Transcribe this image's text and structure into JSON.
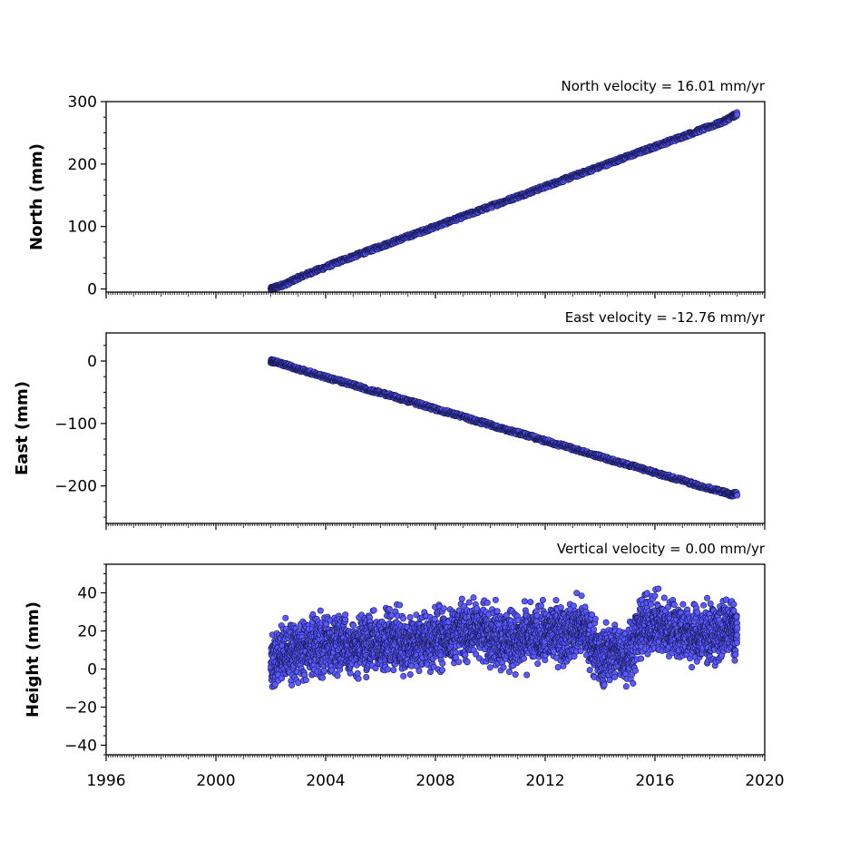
{
  "chart_data": [
    {
      "type": "scatter",
      "title": "North velocity = 16.01 mm/yr",
      "ylabel": "North (mm)",
      "xlim": [
        1996,
        2020
      ],
      "ylim": [
        -5,
        300
      ],
      "yticks": [
        0,
        100,
        200,
        300
      ],
      "ytick_labels": [
        "0",
        "100",
        "200",
        "300"
      ],
      "grid": false,
      "marker_color": "#5a5aff",
      "marker_edge": "#1a1a5a",
      "series": [
        {
          "x": [
            2002.0,
            2002.2,
            2002.6,
            2003.0,
            2003.5,
            2004.0,
            2004.5,
            2005.0,
            2005.5,
            2006.0,
            2006.5,
            2007.0,
            2007.5,
            2008.0,
            2008.5,
            2009.0,
            2009.5,
            2010.0,
            2010.5,
            2011.0,
            2011.5,
            2012.0,
            2012.5,
            2013.0,
            2013.5,
            2014.0,
            2014.5,
            2015.0,
            2015.5,
            2016.0,
            2016.5,
            2017.0,
            2017.5,
            2018.0,
            2018.5,
            2018.8,
            2019.0
          ],
          "y": [
            0,
            3,
            9,
            18,
            27,
            35,
            44,
            52,
            60,
            68,
            76,
            84,
            92,
            100,
            108,
            116,
            124,
            132,
            140,
            148,
            156,
            164,
            172,
            180,
            188,
            196,
            204,
            212,
            220,
            228,
            236,
            244,
            252,
            260,
            268,
            276,
            280
          ]
        }
      ]
    },
    {
      "type": "scatter",
      "title": "East velocity = -12.76 mm/yr",
      "ylabel": "East (mm)",
      "xlim": [
        1996,
        2020
      ],
      "ylim": [
        -260,
        45
      ],
      "yticks": [
        0,
        -100,
        -200
      ],
      "ytick_labels": [
        "0",
        "−100",
        "−200"
      ],
      "grid": false,
      "marker_color": "#5a5aff",
      "marker_edge": "#1a1a5a",
      "series": [
        {
          "x": [
            2002.0,
            2002.2,
            2002.6,
            2003.0,
            2003.5,
            2004.0,
            2004.5,
            2005.0,
            2005.5,
            2006.0,
            2006.5,
            2007.0,
            2007.5,
            2008.0,
            2008.5,
            2009.0,
            2009.5,
            2010.0,
            2010.5,
            2011.0,
            2011.5,
            2012.0,
            2012.5,
            2013.0,
            2013.5,
            2014.0,
            2014.5,
            2015.0,
            2015.5,
            2016.0,
            2016.5,
            2017.0,
            2017.5,
            2018.0,
            2018.5,
            2018.8,
            2019.0
          ],
          "y": [
            0,
            -2,
            -7,
            -13,
            -19,
            -26,
            -32,
            -38,
            -45,
            -51,
            -57,
            -64,
            -70,
            -77,
            -83,
            -89,
            -96,
            -102,
            -109,
            -115,
            -121,
            -128,
            -134,
            -140,
            -147,
            -153,
            -160,
            -166,
            -172,
            -179,
            -185,
            -191,
            -198,
            -204,
            -210,
            -214,
            -212
          ]
        }
      ]
    },
    {
      "type": "scatter",
      "title": "Vertical velocity = 0.00 mm/yr",
      "ylabel": "Height (mm)",
      "xlabel": "",
      "xlim": [
        1996,
        2020
      ],
      "ylim": [
        -45,
        55
      ],
      "yticks": [
        40,
        20,
        0,
        -20,
        -40
      ],
      "ytick_labels": [
        "40",
        "20",
        "0",
        "−20",
        "−40"
      ],
      "xticks": [
        1996,
        2000,
        2004,
        2008,
        2012,
        2016,
        2020
      ],
      "xtick_labels": [
        "1996",
        "2000",
        "2004",
        "2008",
        "2012",
        "2016",
        "2020"
      ],
      "grid": false,
      "marker_color": "#5a5aff",
      "marker_edge": "#1a1a5a",
      "series": [
        {
          "x": [
            2002.0,
            2002.3,
            2002.6,
            2002.9,
            2003.2,
            2003.5,
            2003.8,
            2004.1,
            2004.4,
            2004.7,
            2005.0,
            2005.3,
            2005.6,
            2005.9,
            2006.2,
            2006.5,
            2006.8,
            2007.1,
            2007.4,
            2007.7,
            2008.0,
            2008.3,
            2008.6,
            2008.9,
            2009.2,
            2009.5,
            2009.8,
            2010.1,
            2010.4,
            2010.7,
            2011.0,
            2011.3,
            2011.6,
            2011.9,
            2012.2,
            2012.5,
            2012.8,
            2013.1,
            2013.4,
            2013.7,
            2014.0,
            2014.3,
            2014.6,
            2014.9,
            2015.2,
            2015.5,
            2015.8,
            2016.1,
            2016.4,
            2016.7,
            2017.0,
            2017.3,
            2017.6,
            2017.9,
            2018.2,
            2018.5,
            2018.8,
            2019.0
          ],
          "y": [
            2,
            5,
            8,
            10,
            9,
            11,
            13,
            12,
            14,
            15,
            10,
            12,
            14,
            13,
            15,
            16,
            14,
            12,
            15,
            14,
            16,
            18,
            17,
            20,
            19,
            21,
            20,
            18,
            16,
            15,
            14,
            16,
            18,
            17,
            19,
            20,
            18,
            21,
            22,
            15,
            5,
            8,
            10,
            7,
            12,
            22,
            24,
            23,
            21,
            22,
            20,
            18,
            17,
            19,
            18,
            20,
            22,
            18
          ]
        }
      ]
    }
  ]
}
